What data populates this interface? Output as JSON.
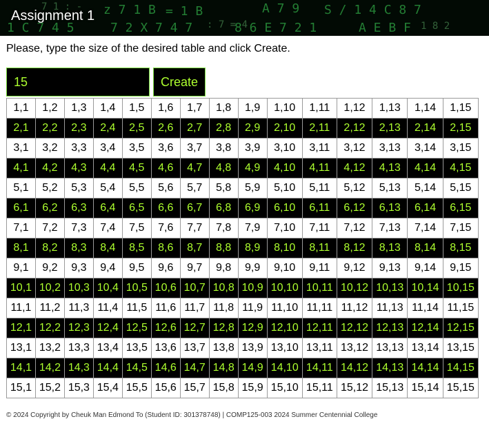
{
  "header": {
    "title": "Assignment 1"
  },
  "instructions": "Please, type the size of the desired table and click Create.",
  "form": {
    "size_value": "15",
    "create_label": "Create"
  },
  "table": {
    "rows": 15,
    "cols": 15
  },
  "colors": {
    "accent_green": "#adff2f",
    "dark_row": "#000000",
    "light_row": "#ffffff"
  },
  "footer": "© 2024 Copyright by Cheuk Man Edmond To (Student ID: 301378748) | COMP125-003 2024 Summer Centennial College"
}
